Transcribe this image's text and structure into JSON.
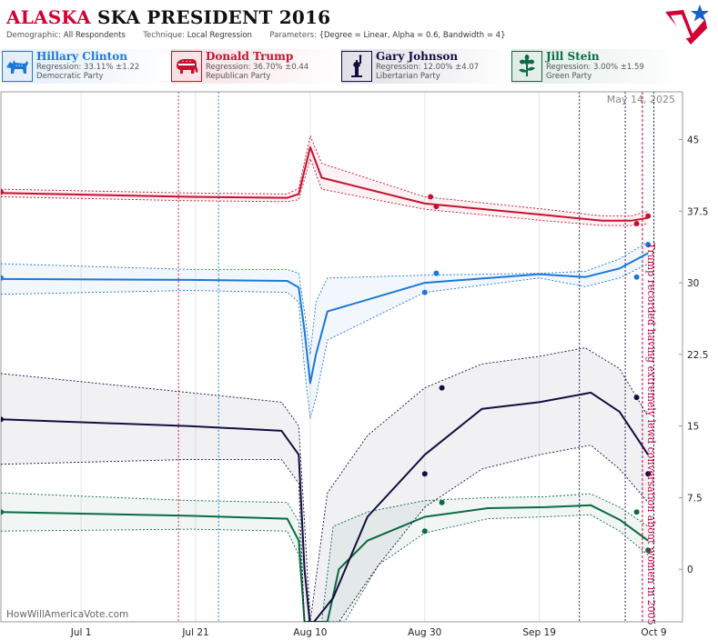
{
  "header": {
    "title_state": "ALASKA",
    "title_rest": "SKA PRESIDENT 2016",
    "demographic_label": "Demographic:",
    "demographic_value": "All Respondents",
    "technique_label": "Technique:",
    "technique_value": "Local Regression",
    "parameters_label": "Parameters:",
    "parameters_value": "{Degree = Linear, Alpha = 0.6, Bandwidth = 4}"
  },
  "legend": [
    {
      "name": "Hillary Clinton",
      "regression": "Regression: 33.11% ±1.22",
      "party": "Democratic Party",
      "color": "#1b78d8",
      "icon": "donkey-icon"
    },
    {
      "name": "Donald Trump",
      "regression": "Regression: 36.70% ±0.44",
      "party": "Republican Party",
      "color": "#c8102e",
      "icon": "elephant-icon"
    },
    {
      "name": "Gary Johnson",
      "regression": "Regression: 12.00% ±4.07",
      "party": "Libertarian Party",
      "color": "#120e40",
      "icon": "liberty-statue-icon"
    },
    {
      "name": "Jill Stein",
      "regression": "Regression: 3.00% ±1.59",
      "party": "Green Party",
      "color": "#0a6b40",
      "icon": "green-flower-icon"
    }
  ],
  "chart_data": {
    "type": "line",
    "x_axis": {
      "type": "date",
      "range": [
        "2016-06-17",
        "2016-10-14"
      ],
      "tick_labels": [
        "Jul 1",
        "Jul 21",
        "Aug 10",
        "Aug 30",
        "Sep 19",
        "Oct 9"
      ],
      "tick_dates": [
        "2016-07-01",
        "2016-07-21",
        "2016-08-10",
        "2016-08-30",
        "2016-09-19",
        "2016-10-09"
      ]
    },
    "y_axis": {
      "range": [
        -5.5,
        50
      ],
      "ticks": [
        0,
        7.5,
        15,
        22.5,
        30,
        37.5,
        45
      ],
      "tick_labels": [
        "0",
        "7.5",
        "15",
        "22.5",
        "30",
        "37.5",
        "45"
      ],
      "position": "right"
    },
    "grid": {
      "vertical": true,
      "horizontal": false
    },
    "date_stamp": "May 14, 2025",
    "credit": "HowWillAmericaVote.com",
    "annotation": {
      "text": "Trump recorded having extremely lewd conversation about women in 2005",
      "date": "2016-10-07",
      "color": "#c2003a"
    },
    "event_lines": [
      {
        "date": "2016-07-18",
        "color": "#c8102e"
      },
      {
        "date": "2016-07-25",
        "color": "#1b78d8"
      },
      {
        "date": "2016-09-26",
        "color": "#120e40"
      },
      {
        "date": "2016-10-04",
        "color": "#120e40"
      },
      {
        "date": "2016-10-09",
        "color": "#120e40"
      }
    ],
    "series": [
      {
        "name": "Donald Trump",
        "color": "#c8102e",
        "points": [
          [
            "2016-06-17",
            39.4
          ],
          [
            "2016-07-20",
            39.0
          ],
          [
            "2016-08-06",
            38.9
          ],
          [
            "2016-08-08",
            39.3
          ],
          [
            "2016-08-10",
            44.2
          ],
          [
            "2016-08-12",
            41.0
          ],
          [
            "2016-08-30",
            38.3
          ],
          [
            "2016-09-20",
            37.1
          ],
          [
            "2016-09-30",
            36.5
          ],
          [
            "2016-10-05",
            36.5
          ],
          [
            "2016-10-08",
            36.8
          ]
        ],
        "upper": [
          [
            "2016-06-17",
            39.8
          ],
          [
            "2016-07-20",
            39.4
          ],
          [
            "2016-08-06",
            39.3
          ],
          [
            "2016-08-08",
            39.9
          ],
          [
            "2016-08-10",
            45.4
          ],
          [
            "2016-08-12",
            42.5
          ],
          [
            "2016-08-30",
            39.0
          ],
          [
            "2016-09-20",
            37.7
          ],
          [
            "2016-09-30",
            37.0
          ],
          [
            "2016-10-05",
            37.0
          ],
          [
            "2016-10-08",
            37.5
          ]
        ],
        "lower": [
          [
            "2016-06-17",
            39.0
          ],
          [
            "2016-07-20",
            38.6
          ],
          [
            "2016-08-06",
            38.5
          ],
          [
            "2016-08-08",
            38.7
          ],
          [
            "2016-08-10",
            43.0
          ],
          [
            "2016-08-12",
            39.8
          ],
          [
            "2016-08-30",
            37.7
          ],
          [
            "2016-09-20",
            36.5
          ],
          [
            "2016-09-30",
            36.0
          ],
          [
            "2016-10-05",
            36.0
          ],
          [
            "2016-10-08",
            36.2
          ]
        ],
        "observations": [
          [
            "2016-06-17",
            39.5
          ],
          [
            "2016-08-31",
            39.0
          ],
          [
            "2016-09-01",
            38.0
          ],
          [
            "2016-10-06",
            36.2
          ],
          [
            "2016-10-08",
            37.0
          ]
        ]
      },
      {
        "name": "Hillary Clinton",
        "color": "#1b78d8",
        "points": [
          [
            "2016-06-17",
            30.4
          ],
          [
            "2016-07-20",
            30.3
          ],
          [
            "2016-08-06",
            30.2
          ],
          [
            "2016-08-08",
            29.5
          ],
          [
            "2016-08-09",
            25.0
          ],
          [
            "2016-08-10",
            19.5
          ],
          [
            "2016-08-11",
            22.5
          ],
          [
            "2016-08-13",
            27.0
          ],
          [
            "2016-08-30",
            30.0
          ],
          [
            "2016-09-19",
            30.9
          ],
          [
            "2016-09-27",
            30.6
          ],
          [
            "2016-10-03",
            31.5
          ],
          [
            "2016-10-08",
            33.1
          ]
        ],
        "upper": [
          [
            "2016-06-17",
            32.0
          ],
          [
            "2016-07-20",
            31.4
          ],
          [
            "2016-08-06",
            31.4
          ],
          [
            "2016-08-08",
            31.0
          ],
          [
            "2016-08-09",
            27.0
          ],
          [
            "2016-08-10",
            22.5
          ],
          [
            "2016-08-11",
            28.0
          ],
          [
            "2016-08-13",
            30.5
          ],
          [
            "2016-08-30",
            30.8
          ],
          [
            "2016-09-19",
            31.0
          ],
          [
            "2016-09-27",
            31.2
          ],
          [
            "2016-10-03",
            32.5
          ],
          [
            "2016-10-08",
            34.3
          ]
        ],
        "lower": [
          [
            "2016-06-17",
            28.8
          ],
          [
            "2016-07-20",
            29.2
          ],
          [
            "2016-08-06",
            29.0
          ],
          [
            "2016-08-08",
            28.0
          ],
          [
            "2016-08-09",
            21.0
          ],
          [
            "2016-08-10",
            15.8
          ],
          [
            "2016-08-11",
            18.0
          ],
          [
            "2016-08-13",
            24.0
          ],
          [
            "2016-08-30",
            29.0
          ],
          [
            "2016-09-19",
            30.5
          ],
          [
            "2016-09-27",
            29.6
          ],
          [
            "2016-10-03",
            30.5
          ],
          [
            "2016-10-08",
            32.0
          ]
        ],
        "observations": [
          [
            "2016-06-17",
            30.5
          ],
          [
            "2016-08-30",
            29.0
          ],
          [
            "2016-09-01",
            31.0
          ],
          [
            "2016-10-06",
            30.6
          ],
          [
            "2016-10-08",
            34.0
          ]
        ]
      },
      {
        "name": "Gary Johnson",
        "color": "#120e40",
        "points": [
          [
            "2016-06-17",
            15.7
          ],
          [
            "2016-07-20",
            15.0
          ],
          [
            "2016-08-05",
            14.5
          ],
          [
            "2016-08-08",
            12.0
          ],
          [
            "2016-08-09",
            0.0
          ],
          [
            "2016-08-10",
            -6.0
          ],
          [
            "2016-08-14",
            -3.0
          ],
          [
            "2016-08-20",
            5.5
          ],
          [
            "2016-08-30",
            12.0
          ],
          [
            "2016-09-09",
            16.8
          ],
          [
            "2016-09-19",
            17.5
          ],
          [
            "2016-09-28",
            18.5
          ],
          [
            "2016-10-03",
            16.5
          ],
          [
            "2016-10-08",
            12.0
          ]
        ],
        "upper": [
          [
            "2016-06-17",
            20.5
          ],
          [
            "2016-07-20",
            18.5
          ],
          [
            "2016-08-05",
            17.5
          ],
          [
            "2016-08-08",
            15.0
          ],
          [
            "2016-08-09",
            5.0
          ],
          [
            "2016-08-10",
            -5.5
          ],
          [
            "2016-08-13",
            8.0
          ],
          [
            "2016-08-20",
            14.0
          ],
          [
            "2016-08-30",
            19.0
          ],
          [
            "2016-09-09",
            21.5
          ],
          [
            "2016-09-19",
            22.3
          ],
          [
            "2016-09-27",
            23.2
          ],
          [
            "2016-10-03",
            21.0
          ],
          [
            "2016-10-08",
            16.0
          ]
        ],
        "lower": [
          [
            "2016-06-17",
            11.0
          ],
          [
            "2016-07-20",
            11.5
          ],
          [
            "2016-08-05",
            11.5
          ],
          [
            "2016-08-08",
            9.0
          ],
          [
            "2016-08-09",
            -5.5
          ],
          [
            "2016-08-15",
            -5.5
          ],
          [
            "2016-08-22",
            0.5
          ],
          [
            "2016-08-30",
            6.5
          ],
          [
            "2016-09-09",
            10.5
          ],
          [
            "2016-09-19",
            12.0
          ],
          [
            "2016-09-28",
            13.0
          ],
          [
            "2016-10-03",
            10.5
          ],
          [
            "2016-10-08",
            7.0
          ]
        ],
        "observations": [
          [
            "2016-06-17",
            15.7
          ],
          [
            "2016-08-30",
            10.0
          ],
          [
            "2016-09-02",
            19.0
          ],
          [
            "2016-10-06",
            18.0
          ],
          [
            "2016-10-08",
            10.0
          ]
        ]
      },
      {
        "name": "Jill Stein",
        "color": "#0a6b40",
        "points": [
          [
            "2016-06-17",
            6.0
          ],
          [
            "2016-07-20",
            5.6
          ],
          [
            "2016-08-06",
            5.3
          ],
          [
            "2016-08-08",
            3.0
          ],
          [
            "2016-08-09",
            -5.5
          ],
          [
            "2016-08-13",
            -5.5
          ],
          [
            "2016-08-15",
            0.0
          ],
          [
            "2016-08-20",
            3.0
          ],
          [
            "2016-08-30",
            5.5
          ],
          [
            "2016-09-10",
            6.4
          ],
          [
            "2016-09-20",
            6.5
          ],
          [
            "2016-09-28",
            6.7
          ],
          [
            "2016-10-03",
            5.2
          ],
          [
            "2016-10-08",
            3.0
          ]
        ],
        "upper": [
          [
            "2016-06-17",
            8.0
          ],
          [
            "2016-07-20",
            7.2
          ],
          [
            "2016-08-06",
            7.0
          ],
          [
            "2016-08-08",
            5.0
          ],
          [
            "2016-08-09",
            -5.5
          ],
          [
            "2016-08-12",
            -5.5
          ],
          [
            "2016-08-14",
            4.5
          ],
          [
            "2016-08-20",
            6.0
          ],
          [
            "2016-08-30",
            7.2
          ],
          [
            "2016-09-10",
            7.5
          ],
          [
            "2016-09-20",
            7.6
          ],
          [
            "2016-09-28",
            7.9
          ],
          [
            "2016-10-03",
            6.5
          ],
          [
            "2016-10-08",
            4.5
          ]
        ],
        "lower": [
          [
            "2016-06-17",
            4.0
          ],
          [
            "2016-07-20",
            4.2
          ],
          [
            "2016-08-06",
            4.0
          ],
          [
            "2016-08-08",
            1.5
          ],
          [
            "2016-08-09",
            -5.5
          ],
          [
            "2016-08-16",
            -5.5
          ],
          [
            "2016-08-22",
            0.5
          ],
          [
            "2016-08-30",
            3.8
          ],
          [
            "2016-09-10",
            5.3
          ],
          [
            "2016-09-20",
            5.5
          ],
          [
            "2016-09-28",
            5.7
          ],
          [
            "2016-10-03",
            4.0
          ],
          [
            "2016-10-08",
            1.5
          ]
        ],
        "observations": [
          [
            "2016-06-17",
            6.0
          ],
          [
            "2016-08-30",
            4.0
          ],
          [
            "2016-09-02",
            7.0
          ],
          [
            "2016-10-06",
            6.0
          ],
          [
            "2016-10-08",
            2.0
          ]
        ]
      }
    ]
  }
}
